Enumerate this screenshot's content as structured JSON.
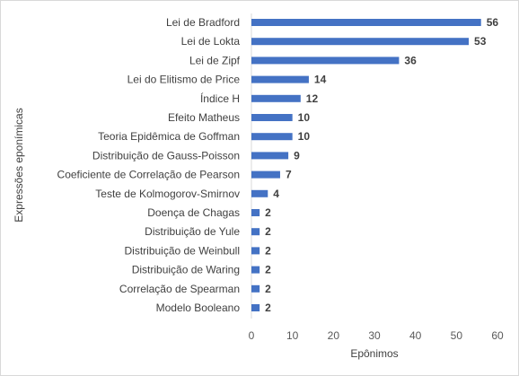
{
  "chart_data": {
    "type": "bar",
    "orientation": "horizontal",
    "categories": [
      "Lei de Bradford",
      "Lei de Lokta",
      "Lei de Zipf",
      "Lei do Elitismo de Price",
      "Índice H",
      "Efeito Matheus",
      "Teoria Epidêmica de Goffman",
      "Distribuição de Gauss-Poisson",
      "Coeficiente de Correlação de Pearson",
      "Teste de Kolmogorov-Smirnov",
      "Doença de Chagas",
      "Distribuição de Yule",
      "Distribuição de Weinbull",
      "Distribuição de Waring",
      "Correlação de Spearman",
      "Modelo Booleano"
    ],
    "values": [
      56,
      53,
      36,
      14,
      12,
      10,
      10,
      9,
      7,
      4,
      2,
      2,
      2,
      2,
      2,
      2
    ],
    "xlabel": "Epônimos",
    "ylabel": "Expressões eponímicas",
    "xlim": [
      0,
      60
    ],
    "xticks": [
      "0",
      "10",
      "20",
      "30",
      "40",
      "50",
      "60"
    ],
    "grid": false,
    "legend": "none",
    "bar_color": "#4472c4"
  }
}
